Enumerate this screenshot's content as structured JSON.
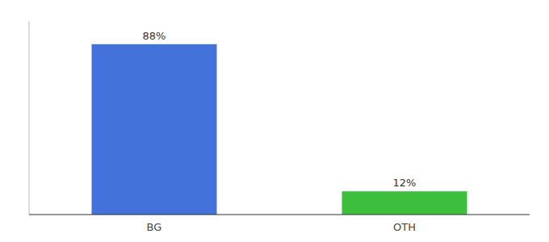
{
  "chart_data": {
    "type": "bar",
    "categories": [
      "BG",
      "OTH"
    ],
    "values": [
      88,
      12
    ],
    "colors": [
      "#4472db",
      "#3dbf3d"
    ],
    "value_labels": [
      "88%",
      "12%"
    ],
    "data_labels": true,
    "ylim": [
      0,
      100
    ],
    "tick_labels": "x",
    "grid": false
  }
}
